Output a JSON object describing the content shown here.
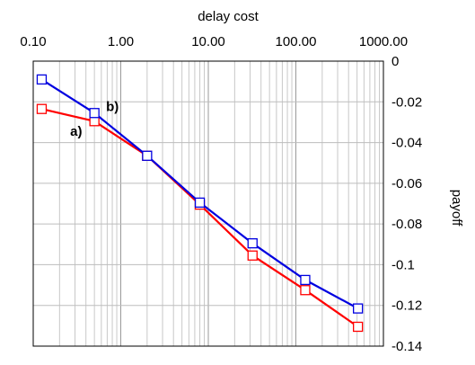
{
  "chart_data": {
    "type": "line",
    "title": "",
    "xlabel": "delay cost",
    "ylabel": "payoff",
    "x_scale": "log",
    "xlim": [
      0.1,
      1000
    ],
    "ylim": [
      -0.14,
      0
    ],
    "x_tick_labels": [
      "0.10",
      "1.00",
      "10.00",
      "100.00",
      "1000.00"
    ],
    "x_tick_values": [
      0.1,
      1,
      10,
      100,
      1000
    ],
    "y_tick_labels": [
      "0",
      "-0.02",
      "-0.04",
      "-0.06",
      "-0.08",
      "-0.1",
      "-0.12",
      "-0.14"
    ],
    "y_tick_values": [
      0,
      -0.02,
      -0.04,
      -0.06,
      -0.08,
      -0.1,
      -0.12,
      -0.14
    ],
    "x_axis_position": "top",
    "y_axis_position": "right",
    "grid": true,
    "legend": false,
    "marker": "open-square",
    "x": [
      0.125,
      0.5,
      2,
      8,
      32,
      128,
      512
    ],
    "series": [
      {
        "label": "a)",
        "color": "#ff0000",
        "values": [
          -0.0235,
          -0.0295,
          -0.0465,
          -0.0705,
          -0.0955,
          -0.1125,
          -0.1305
        ]
      },
      {
        "label": "b)",
        "color": "#0000e0",
        "values": [
          -0.009,
          -0.0255,
          -0.0465,
          -0.0695,
          -0.0895,
          -0.1075,
          -0.1215
        ]
      }
    ]
  }
}
